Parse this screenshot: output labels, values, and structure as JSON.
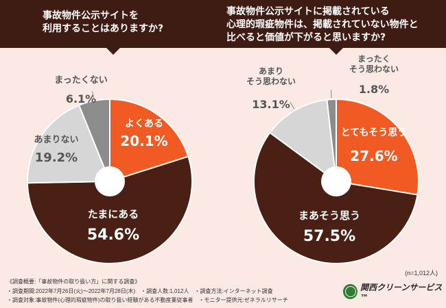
{
  "questions": {
    "q1": "事故物件公示サイトを\n利用することはありますか?",
    "q2": "事故物件公示サイトに掲載されている\n心理的瑕疵物件は、掲載されていない物件と\n比べると価値が下がると思いますか?"
  },
  "colors": {
    "header": "#3f1c13",
    "orange": "#f15a22",
    "brown": "#4a1f14",
    "light_gray": "#d6d6d6",
    "dark_gray": "#8c8c8c"
  },
  "chart_data": [
    {
      "type": "pie",
      "title": "事故物件公示サイトを利用することはありますか?",
      "unit": "%",
      "slices": [
        {
          "label": "よくある",
          "value": 20.1,
          "color": "#f15a22",
          "value_text": "20.1%"
        },
        {
          "label": "たまにある",
          "value": 54.6,
          "color": "#4a1f14",
          "value_text": "54.6%"
        },
        {
          "label": "あまりない",
          "value": 19.2,
          "color": "#d6d6d6",
          "value_text": "19.2%"
        },
        {
          "label": "まったくない",
          "value": 6.1,
          "color": "#8c8c8c",
          "value_text": "6.1%"
        }
      ]
    },
    {
      "type": "pie",
      "title": "事故物件公示サイトに掲載されている心理的瑕疵物件は、掲載されていない物件と比べると価値が下がると思いますか?",
      "unit": "%",
      "slices": [
        {
          "label": "とてもそう思う",
          "value": 27.6,
          "color": "#f15a22",
          "value_text": "27.6%"
        },
        {
          "label": "まあそう思う",
          "value": 57.5,
          "color": "#4a1f14",
          "value_text": "57.5%"
        },
        {
          "label": "あまり\nそう思わない",
          "value": 13.1,
          "color": "#d6d6d6",
          "value_text": "13.1%"
        },
        {
          "label": "まったく\nそう思わない",
          "value": 1.8,
          "color": "#8c8c8c",
          "value_text": "1.8%"
        }
      ]
    }
  ],
  "sample_size": "(n=1,012人)",
  "footer": {
    "line1": "《調査概要:「事故物件の取り扱い方」に関する調査》",
    "line2": "・調査期間:2022年7月26日(火)〜2022年7月28日(木)　・調査人数:1,012人　・調査方法:インターネット調査",
    "line3": "・調査対象:事故物件(心理的瑕疵物件)の取り扱い経験がある不動産業従事者　・モニター提供元:ゼネラルリサーチ"
  },
  "logo": {
    "text": "関西クリーンサービス™"
  }
}
